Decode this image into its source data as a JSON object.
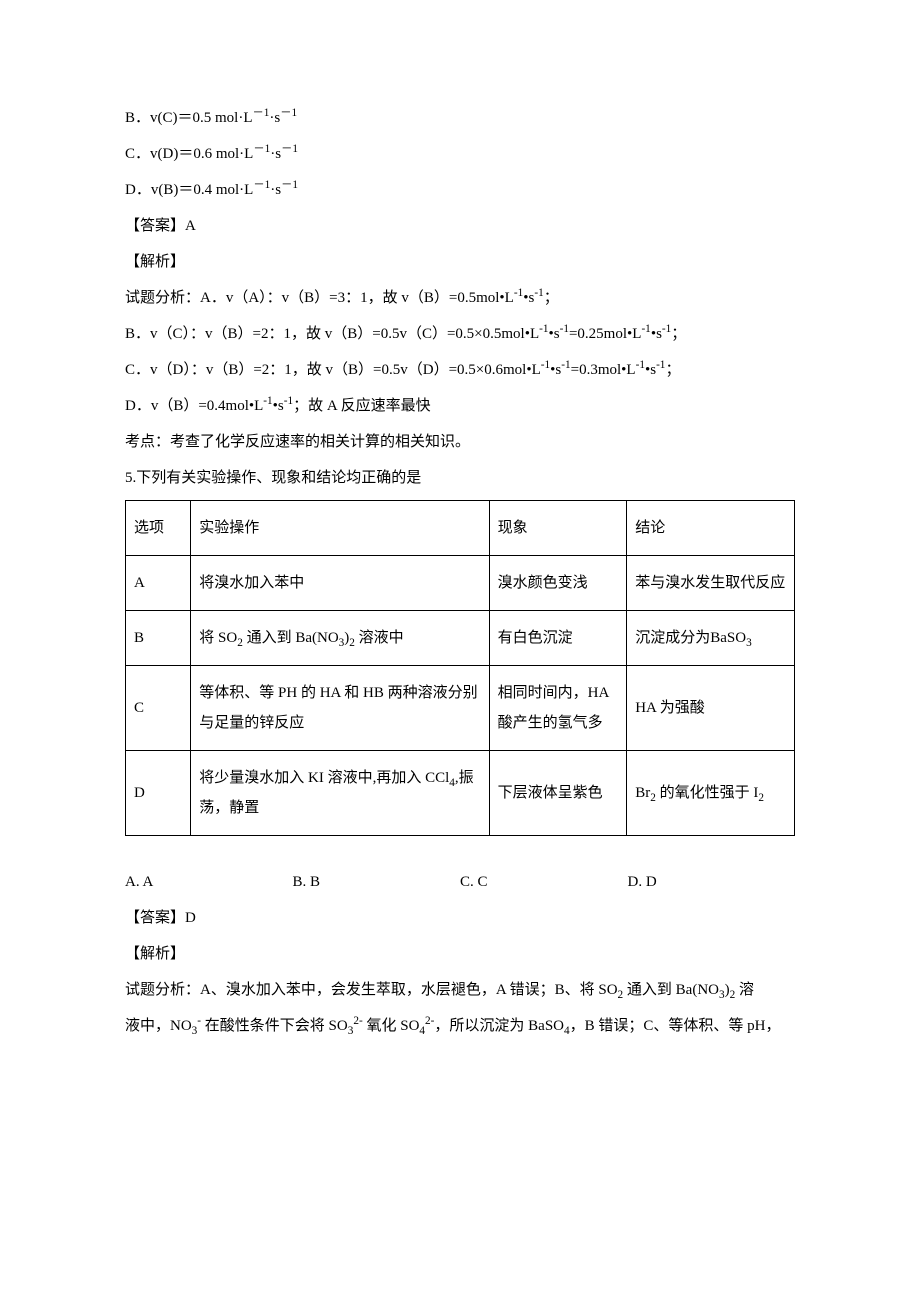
{
  "lines": {
    "l1_pre": "B．v(C)＝0.5 mol·L",
    "l1_sup1": "－1",
    "l1_mid": "·s",
    "l1_sup2": "－1",
    "l2_pre": "C．v(D)＝0.6 mol·L",
    "l2_sup1": "－1",
    "l2_mid": "·s",
    "l2_sup2": "－1",
    "l3_pre": "D．v(B)＝0.4 mol·L",
    "l3_sup1": "－1",
    "l3_mid": "·s",
    "l3_sup2": "－1",
    "ans4": "【答案】A",
    "exp_h": "【解析】",
    "an1_a": "试题分析：A．v（A）：v（B）=3：1，故 v（B）=0.5mol•L",
    "an1_b": "•s",
    "an1_c": "；",
    "an2_a": "B．v（C）：v（B）=2：1，故 v（B）=0.5v（C）=0.5×0.5mol•L",
    "an2_b": "•s",
    "an2_c": "=0.25mol•L",
    "an2_d": "•s",
    "an2_e": "；",
    "an3_a": "C．v（D）：v（B）=2：1，故 v（B）=0.5v（D）=0.5×0.6mol•L",
    "an3_b": "•s",
    "an3_c": "=0.3mol•L",
    "an3_d": "•s",
    "an3_e": "；",
    "an4_a": "D．v（B）=0.4mol•L",
    "an4_b": "•s",
    "an4_c": "；故 A 反应速率最快",
    "kd": "考点：考查了化学反应速率的相关计算的相关知识。",
    "q5": "5.下列有关实验操作、现象和结论均正确的是",
    "neg1": "-1"
  },
  "table": {
    "head": {
      "c1": "选项",
      "c2": "实验操作",
      "c3": "现象",
      "c4": "结论"
    },
    "rowA": {
      "c1": "A",
      "c2": "将溴水加入苯中",
      "c3": "溴水颜色变浅",
      "c4": "苯与溴水发生取代反应"
    },
    "rowB": {
      "c1": "B",
      "c2_a": "将 SO",
      "c2_b": " 通入到 Ba(NO",
      "c2_c": ")",
      "c2_d": " 溶液中",
      "sub2": "2",
      "sub3": "3",
      "c3": "有白色沉淀",
      "c4_a": "沉淀成分为BaSO",
      "c4_sub": "3"
    },
    "rowC": {
      "c1": "C",
      "c2": "等体积、等 PH 的 HA 和 HB 两种溶液分别与足量的锌反应",
      "c3": "相同时间内，HA 酸产生的氢气多",
      "c4": "HA 为强酸"
    },
    "rowD": {
      "c1": "D",
      "c2_a": "将少量溴水加入 KI 溶液中,再加入 CCl",
      "c2_sub": "4",
      "c2_b": ",振荡，静置",
      "c3": "下层液体呈紫色",
      "c4_a": "Br",
      "c4_sub1": "2",
      "c4_b": " 的氧化性强于 I",
      "c4_sub2": "2"
    }
  },
  "options": {
    "a": "A. A",
    "b": "B. B",
    "c": "C. C",
    "d": "D. D"
  },
  "ans5": "【答案】D",
  "exp5_h": "【解析】",
  "exp5": {
    "p1_a": "试题分析：A、溴水加入苯中，会发生萃取，水层褪色，A 错误；B、将 SO",
    "p1_b": " 通入到 Ba(NO",
    "p1_c": ")",
    "p1_d": " 溶",
    "p2_a": "液中，NO",
    "p2_b": " 在酸性条件下会将 SO",
    "p2_c": " 氧化 SO",
    "p2_d": "，所以沉淀为 BaSO",
    "p2_e": "，B 错误；C、等体积、等 pH，",
    "sub2": "2",
    "sub3": "3",
    "sub4": "4",
    "sup_neg": "-",
    "sup_2neg": "2-"
  }
}
